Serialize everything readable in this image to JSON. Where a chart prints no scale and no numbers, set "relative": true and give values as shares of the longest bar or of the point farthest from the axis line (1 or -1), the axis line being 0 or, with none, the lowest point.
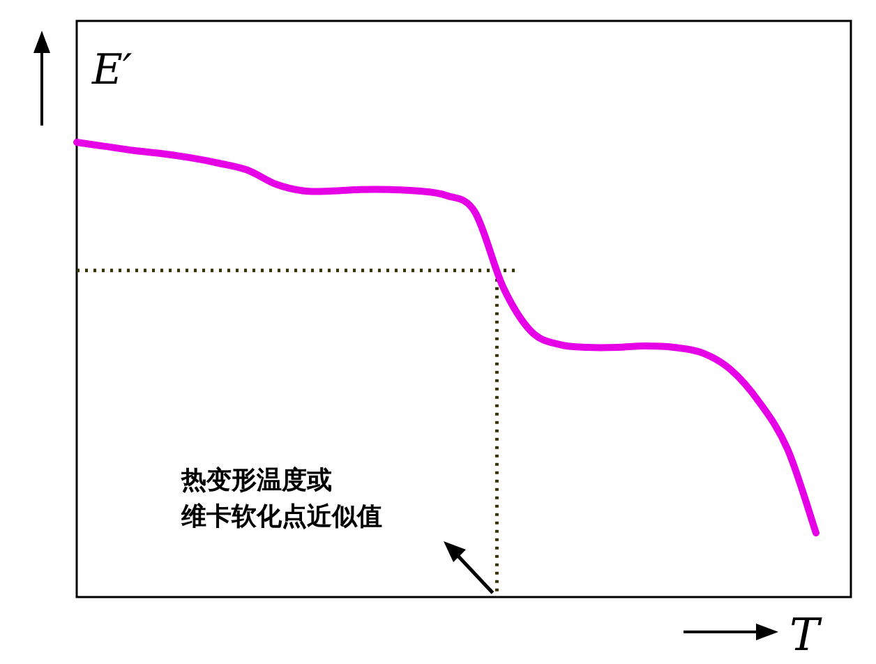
{
  "chart_data": {
    "type": "line",
    "relative": true,
    "xlabel": "T",
    "ylabel": "E′",
    "categories": [
      null,
      null,
      null,
      null,
      null,
      null,
      null,
      null,
      null,
      null,
      null,
      null,
      null,
      null,
      null,
      null,
      null,
      null,
      null,
      null,
      null,
      null,
      null,
      null,
      null,
      null,
      null
    ],
    "series": [
      {
        "color": "#e600e6",
        "values": [
          1,
          0.991,
          0.982,
          0.975,
          0.966,
          0.954,
          0.939,
          0.908,
          0.893,
          0.893,
          0.896,
          0.896,
          0.893,
          0.883,
          0.847,
          0.681,
          0.583,
          0.555,
          0.549,
          0.549,
          0.552,
          0.549,
          0.537,
          0.5,
          0.429,
          0.325,
          0.141
        ]
      }
    ],
    "ref_lines": [
      {
        "axis": "y",
        "value": 0.718,
        "color": "#333300",
        "line_style": "dotted"
      }
    ],
    "annotations": [
      "热变形温度或维卡软化点近似值"
    ],
    "marker": "none",
    "line_style": "solid"
  }
}
